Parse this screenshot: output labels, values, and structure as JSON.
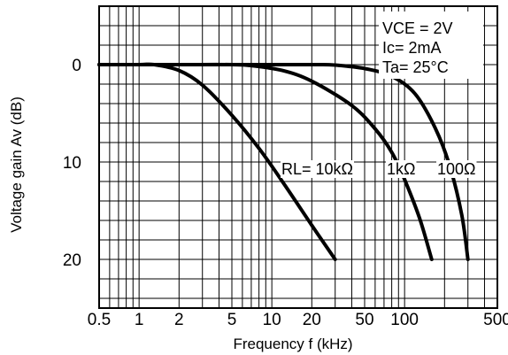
{
  "chart_data": {
    "type": "line",
    "title": "",
    "xlabel": "Frequency f (kHz)",
    "ylabel": "Voltage gain Av (dB)",
    "xscale": "log",
    "xlim": [
      0.5,
      500
    ],
    "ylim": [
      -6,
      25
    ],
    "y_inverted": true,
    "grid": true,
    "x_ticks": [
      {
        "value": 0.5,
        "label": "0.5"
      },
      {
        "value": 1,
        "label": "1"
      },
      {
        "value": 2,
        "label": "2"
      },
      {
        "value": 5,
        "label": "5"
      },
      {
        "value": 10,
        "label": "10"
      },
      {
        "value": 20,
        "label": "20"
      },
      {
        "value": 50,
        "label": "50"
      },
      {
        "value": 100,
        "label": "100"
      },
      {
        "value": 500,
        "label": "500"
      }
    ],
    "y_ticks": [
      {
        "value": 0,
        "label": "0"
      },
      {
        "value": 10,
        "label": "10"
      },
      {
        "value": 20,
        "label": "20"
      }
    ],
    "conditions": [
      "VCE = 2V",
      "Ic= 2mA",
      "Ta= 25°C"
    ],
    "series": [
      {
        "name": "RL= 10kΩ",
        "x": [
          0.5,
          1,
          1.3,
          2,
          3,
          5,
          8,
          12,
          20,
          30
        ],
        "y": [
          0,
          0,
          0,
          0.6,
          2.1,
          5.2,
          8.6,
          12,
          16.5,
          20
        ]
      },
      {
        "name": "1kΩ",
        "x": [
          0.5,
          2,
          5,
          7,
          12,
          20,
          40,
          60,
          80,
          100,
          130,
          160
        ],
        "y": [
          0,
          0,
          0,
          0.1,
          0.6,
          1.7,
          4.2,
          6.6,
          9,
          11.8,
          15.8,
          20
        ]
      },
      {
        "name": "100Ω",
        "x": [
          0.5,
          5,
          20,
          30,
          50,
          80,
          120,
          170,
          220,
          270,
          300
        ],
        "y": [
          0,
          0,
          0,
          0.05,
          0.4,
          1.2,
          3,
          6.5,
          10.5,
          15.5,
          20
        ]
      }
    ]
  }
}
